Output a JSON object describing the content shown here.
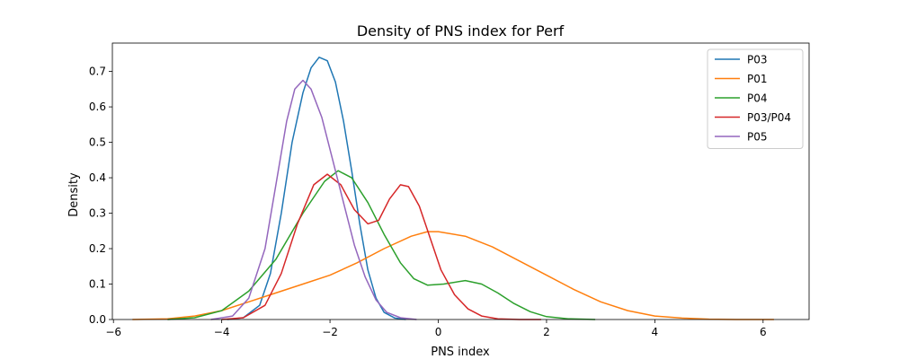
{
  "chart_data": {
    "type": "line",
    "title": "Density of PNS index for Perf",
    "xlabel": "PNS index",
    "ylabel": "Density",
    "xlim": [
      -6.02,
      6.85
    ],
    "ylim": [
      0.0,
      0.78
    ],
    "xticks": [
      -6,
      -4,
      -2,
      0,
      2,
      4,
      6
    ],
    "xtick_labels": [
      "−6",
      "−4",
      "−2",
      "0",
      "2",
      "4",
      "6"
    ],
    "yticks": [
      0.0,
      0.1,
      0.2,
      0.3,
      0.4,
      0.5,
      0.6,
      0.7
    ],
    "ytick_labels": [
      "0.0",
      "0.1",
      "0.2",
      "0.3",
      "0.4",
      "0.5",
      "0.6",
      "0.7"
    ],
    "grid": false,
    "legend_position": "upper right",
    "series": [
      {
        "name": "P03",
        "color": "#1f77b4",
        "points": [
          [
            -3.9,
            0.0
          ],
          [
            -3.6,
            0.005
          ],
          [
            -3.3,
            0.04
          ],
          [
            -3.1,
            0.13
          ],
          [
            -2.9,
            0.3
          ],
          [
            -2.7,
            0.5
          ],
          [
            -2.5,
            0.64
          ],
          [
            -2.35,
            0.71
          ],
          [
            -2.2,
            0.74
          ],
          [
            -2.05,
            0.73
          ],
          [
            -1.9,
            0.67
          ],
          [
            -1.75,
            0.56
          ],
          [
            -1.6,
            0.42
          ],
          [
            -1.45,
            0.27
          ],
          [
            -1.3,
            0.14
          ],
          [
            -1.15,
            0.06
          ],
          [
            -1.0,
            0.02
          ],
          [
            -0.8,
            0.004
          ],
          [
            -0.6,
            0.0
          ]
        ]
      },
      {
        "name": "P01",
        "color": "#ff7f0e",
        "points": [
          [
            -5.65,
            0.0
          ],
          [
            -5.0,
            0.002
          ],
          [
            -4.5,
            0.01
          ],
          [
            -4.0,
            0.025
          ],
          [
            -3.5,
            0.05
          ],
          [
            -3.0,
            0.075
          ],
          [
            -2.5,
            0.1
          ],
          [
            -2.0,
            0.125
          ],
          [
            -1.5,
            0.16
          ],
          [
            -1.0,
            0.2
          ],
          [
            -0.5,
            0.235
          ],
          [
            -0.2,
            0.248
          ],
          [
            0.0,
            0.248
          ],
          [
            0.5,
            0.235
          ],
          [
            1.0,
            0.205
          ],
          [
            1.5,
            0.165
          ],
          [
            2.0,
            0.125
          ],
          [
            2.5,
            0.085
          ],
          [
            3.0,
            0.05
          ],
          [
            3.5,
            0.025
          ],
          [
            4.0,
            0.01
          ],
          [
            4.5,
            0.004
          ],
          [
            5.0,
            0.001
          ],
          [
            5.5,
            0.0
          ],
          [
            6.2,
            0.0
          ]
        ]
      },
      {
        "name": "P04",
        "color": "#2ca02c",
        "points": [
          [
            -5.0,
            0.0
          ],
          [
            -4.5,
            0.005
          ],
          [
            -4.0,
            0.025
          ],
          [
            -3.5,
            0.08
          ],
          [
            -3.0,
            0.17
          ],
          [
            -2.5,
            0.3
          ],
          [
            -2.1,
            0.39
          ],
          [
            -1.85,
            0.42
          ],
          [
            -1.6,
            0.4
          ],
          [
            -1.3,
            0.33
          ],
          [
            -1.0,
            0.24
          ],
          [
            -0.7,
            0.16
          ],
          [
            -0.45,
            0.115
          ],
          [
            -0.2,
            0.097
          ],
          [
            0.1,
            0.1
          ],
          [
            0.5,
            0.11
          ],
          [
            0.8,
            0.1
          ],
          [
            1.1,
            0.075
          ],
          [
            1.4,
            0.045
          ],
          [
            1.7,
            0.022
          ],
          [
            2.0,
            0.008
          ],
          [
            2.4,
            0.002
          ],
          [
            2.9,
            0.0
          ]
        ]
      },
      {
        "name": "P03/P04",
        "color": "#d62728",
        "points": [
          [
            -4.0,
            0.0
          ],
          [
            -3.6,
            0.005
          ],
          [
            -3.2,
            0.04
          ],
          [
            -2.9,
            0.13
          ],
          [
            -2.6,
            0.27
          ],
          [
            -2.3,
            0.38
          ],
          [
            -2.05,
            0.41
          ],
          [
            -1.8,
            0.38
          ],
          [
            -1.55,
            0.31
          ],
          [
            -1.3,
            0.27
          ],
          [
            -1.1,
            0.28
          ],
          [
            -0.9,
            0.34
          ],
          [
            -0.7,
            0.38
          ],
          [
            -0.55,
            0.375
          ],
          [
            -0.35,
            0.32
          ],
          [
            -0.15,
            0.23
          ],
          [
            0.05,
            0.14
          ],
          [
            0.3,
            0.07
          ],
          [
            0.55,
            0.03
          ],
          [
            0.8,
            0.01
          ],
          [
            1.1,
            0.002
          ],
          [
            1.5,
            0.0
          ],
          [
            1.9,
            0.0
          ]
        ]
      },
      {
        "name": "P05",
        "color": "#9467bd",
        "points": [
          [
            -4.2,
            0.0
          ],
          [
            -3.8,
            0.01
          ],
          [
            -3.5,
            0.06
          ],
          [
            -3.2,
            0.2
          ],
          [
            -3.0,
            0.38
          ],
          [
            -2.8,
            0.56
          ],
          [
            -2.65,
            0.65
          ],
          [
            -2.5,
            0.675
          ],
          [
            -2.35,
            0.65
          ],
          [
            -2.15,
            0.57
          ],
          [
            -1.95,
            0.45
          ],
          [
            -1.75,
            0.33
          ],
          [
            -1.55,
            0.21
          ],
          [
            -1.35,
            0.12
          ],
          [
            -1.15,
            0.055
          ],
          [
            -0.95,
            0.02
          ],
          [
            -0.7,
            0.005
          ],
          [
            -0.4,
            0.0
          ]
        ]
      }
    ]
  }
}
